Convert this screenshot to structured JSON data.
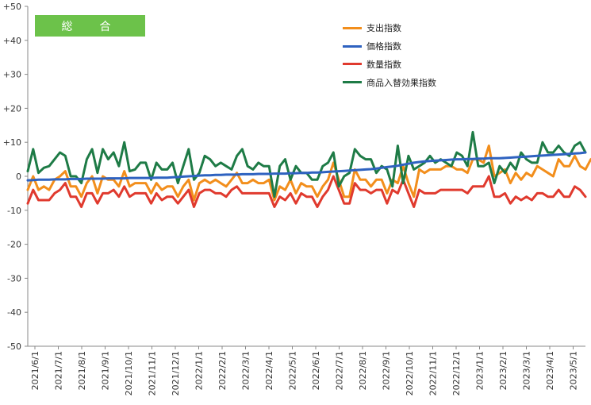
{
  "panel_label": "総　合",
  "chart_data": {
    "type": "line",
    "y_ticks": [
      "+50",
      "+40",
      "+30",
      "+20",
      "+10",
      "0",
      "-10",
      "-20",
      "-30",
      "-40",
      "-50"
    ],
    "ylim": [
      -50,
      50
    ],
    "x_tick_labels": [
      "2021/6/1",
      "2021/7/1",
      "2021/8/1",
      "2021/9/1",
      "2021/10/1",
      "2021/11/1",
      "2021/12/1",
      "2022/1/1",
      "2022/2/1",
      "2022/3/1",
      "2022/4/1",
      "2022/5/1",
      "2022/6/1",
      "2022/7/1",
      "2022/8/1",
      "2022/9/1",
      "2022/10/1",
      "2022/11/1",
      "2022/12/1",
      "2023/1/1",
      "2023/2/1",
      "2023/3/1",
      "2023/4/1",
      "2023/5/1"
    ],
    "x_count": 105,
    "grid": false,
    "legend_position": "top-right",
    "series": [
      {
        "name": "支出指数",
        "color": "#f28e1c",
        "values": [
          -4,
          0,
          -4,
          -3,
          -4,
          -1,
          0,
          1.5,
          -3,
          -3,
          -6,
          -2,
          0,
          -5,
          0,
          -1,
          -1,
          -3,
          1.5,
          -3,
          -2,
          -2,
          -2,
          -5,
          -2,
          -4,
          -3,
          -3,
          -6,
          -3,
          -1,
          -7,
          -2,
          -1,
          -2,
          -1,
          -2,
          -3,
          -1,
          1,
          -2,
          -2,
          -1,
          -2,
          -2,
          -1,
          -7,
          -3,
          -4,
          -1,
          -5,
          -2,
          -3,
          -3,
          -6,
          -3,
          -1,
          4,
          -1,
          -6,
          -6,
          2,
          -1,
          -1,
          -3,
          -1,
          -1,
          -5,
          -1,
          -2,
          3,
          -2,
          -6,
          2,
          1,
          2,
          2,
          2,
          3,
          3,
          2,
          2,
          1,
          5,
          5,
          4,
          9,
          0,
          1,
          2,
          -2,
          1,
          -1,
          1,
          0,
          3,
          2,
          1,
          0,
          5,
          3,
          3,
          6,
          3,
          2,
          5,
          6,
          3
        ]
      },
      {
        "name": "価格指数",
        "color": "#2e62c0",
        "values": [
          -1.2,
          -1.1,
          -1.0,
          -1.0,
          -1.0,
          -0.9,
          -0.9,
          -0.9,
          -0.8,
          -0.8,
          -0.8,
          -0.7,
          -0.7,
          -0.7,
          -0.7,
          -0.6,
          -0.6,
          -0.6,
          -0.6,
          -0.5,
          -0.5,
          -0.5,
          -0.5,
          -0.5,
          -0.4,
          -0.4,
          -0.4,
          -0.3,
          -0.2,
          -0.1,
          0,
          0.1,
          0.2,
          0.3,
          0.3,
          0.4,
          0.4,
          0.5,
          0.5,
          0.5,
          0.6,
          0.6,
          0.6,
          0.7,
          0.7,
          0.7,
          0.8,
          0.8,
          0.8,
          0.9,
          0.9,
          1.0,
          1.0,
          1.1,
          1.1,
          1.2,
          1.3,
          1.4,
          1.5,
          1.6,
          1.7,
          1.8,
          1.9,
          2.0,
          2.1,
          2.3,
          2.5,
          2.7,
          2.9,
          3.1,
          3.4,
          3.7,
          4.0,
          4.2,
          4.4,
          4.5,
          4.6,
          4.7,
          4.8,
          4.9,
          5.0,
          5.0,
          5.1,
          5.1,
          5.2,
          5.2,
          5.3,
          5.3,
          5.3,
          5.4,
          5.5,
          5.6,
          5.7,
          5.8,
          5.9,
          6.0,
          6.1,
          6.2,
          6.3,
          6.4,
          6.5,
          6.6,
          6.7,
          6.8,
          7.0
        ]
      },
      {
        "name": "数量指数",
        "color": "#e03a2e",
        "values": [
          -8,
          -4,
          -7,
          -7,
          -7,
          -5,
          -4,
          -2,
          -6,
          -6,
          -9,
          -5,
          -5,
          -8,
          -5,
          -5,
          -4,
          -6,
          -3,
          -6,
          -5,
          -5,
          -5,
          -8,
          -5,
          -7,
          -6,
          -6,
          -8,
          -6,
          -4,
          -9,
          -5,
          -4,
          -4,
          -5,
          -5,
          -6,
          -4,
          -3,
          -5,
          -5,
          -5,
          -5,
          -5,
          -5,
          -9,
          -6,
          -7,
          -5,
          -8,
          -5,
          -6,
          -6,
          -9,
          -6,
          -4,
          0,
          -4,
          -8,
          -8,
          -2,
          -4,
          -4,
          -5,
          -4,
          -4,
          -8,
          -4,
          -5,
          -1,
          -5,
          -9,
          -4,
          -5,
          -5,
          -5,
          -4,
          -4,
          -4,
          -4,
          -4,
          -5,
          -3,
          -3,
          -3,
          0,
          -6,
          -6,
          -5,
          -8,
          -6,
          -7,
          -6,
          -7,
          -5,
          -5,
          -6,
          -6,
          -4,
          -6,
          -6,
          -3,
          -4,
          -6
        ]
      },
      {
        "name": "商品入替効果指数",
        "color": "#1e7b46",
        "values": [
          1.5,
          8,
          1,
          2.5,
          3,
          5,
          7,
          6,
          0,
          0,
          -2,
          5,
          8,
          1,
          8,
          5,
          7,
          3,
          10,
          1.5,
          2,
          4,
          4,
          -1,
          4,
          2,
          2,
          4,
          -2,
          3,
          8,
          -1,
          1,
          6,
          5,
          3,
          4,
          3,
          2,
          6,
          8,
          3,
          2,
          4,
          3,
          3,
          -6,
          3,
          5,
          -1,
          3,
          1,
          1,
          -1,
          -1,
          3,
          4,
          7,
          -3,
          0,
          1,
          8,
          6,
          5,
          5,
          1,
          3,
          2,
          -3,
          9,
          -2,
          6,
          2,
          3,
          4,
          6,
          4,
          5,
          4,
          3,
          7,
          6,
          3,
          13,
          3,
          3,
          4,
          -2,
          3,
          1,
          4,
          2,
          7,
          5,
          4,
          4,
          10,
          7,
          7,
          9,
          7,
          6,
          9,
          10,
          7
        ]
      }
    ]
  }
}
